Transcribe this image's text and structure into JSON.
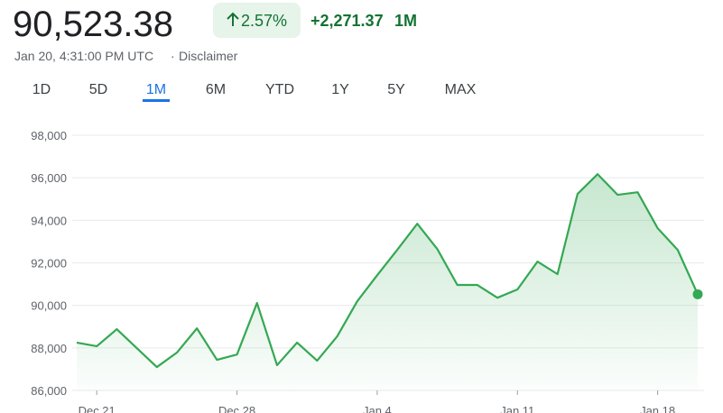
{
  "header": {
    "price": "90,523.38",
    "change_percent": "2.57%",
    "change_value": "+2,271.37",
    "change_period": "1M",
    "timestamp": "Jan 20, 4:31:00 PM UTC",
    "disclaimer": "Disclaimer"
  },
  "tabs": {
    "items": [
      "1D",
      "5D",
      "1M",
      "6M",
      "YTD",
      "1Y",
      "5Y",
      "MAX"
    ],
    "active": 2
  },
  "chart_data": {
    "type": "area_line",
    "color": "#34a853",
    "categories": [
      null,
      "Dec 21",
      null,
      null,
      null,
      null,
      null,
      null,
      "Dec 28",
      null,
      null,
      null,
      null,
      null,
      null,
      "Jan 4",
      null,
      null,
      null,
      null,
      null,
      null,
      "Jan 11",
      null,
      null,
      null,
      null,
      null,
      null,
      "Jan 18",
      null,
      null
    ],
    "values": [
      88250,
      88080,
      88880,
      87990,
      87100,
      87780,
      88920,
      87440,
      87690,
      90110,
      87190,
      88250,
      87400,
      88540,
      90190,
      91420,
      92610,
      93840,
      92650,
      90960,
      90960,
      90360,
      90750,
      92060,
      91470,
      95240,
      96170,
      95200,
      95320,
      93630,
      92610,
      90523.38
    ],
    "ylim": [
      86000,
      98000
    ],
    "yticks": [
      {
        "value": 86000,
        "label": "86,000"
      },
      {
        "value": 88000,
        "label": "88,000"
      },
      {
        "value": 90000,
        "label": "90,000"
      },
      {
        "value": 92000,
        "label": "92,000"
      },
      {
        "value": 94000,
        "label": "94,000"
      },
      {
        "value": 96000,
        "label": "96,000"
      },
      {
        "value": 98000,
        "label": "98,000"
      }
    ],
    "grid": true
  }
}
